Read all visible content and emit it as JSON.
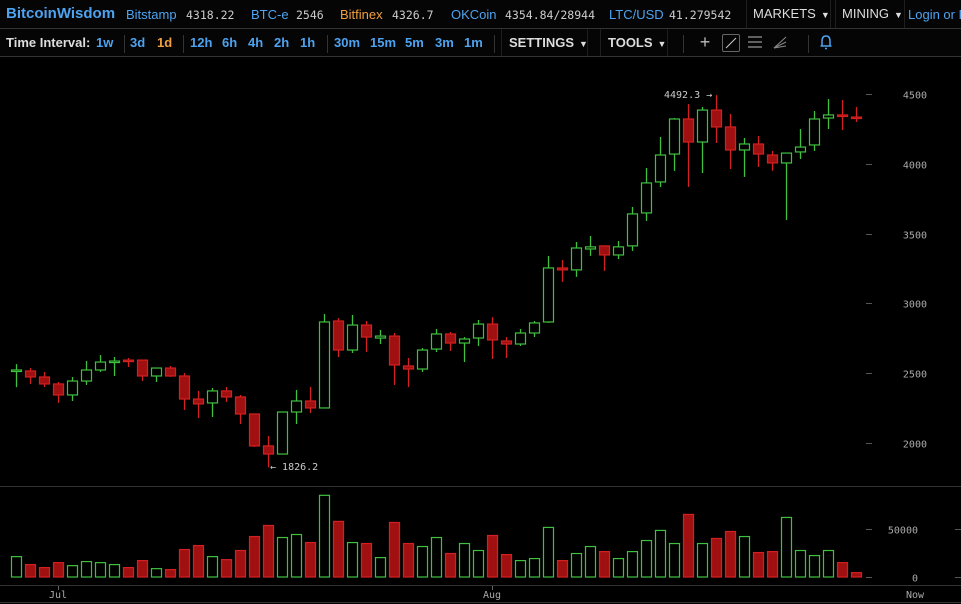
{
  "header": {
    "brand": "BitcoinWisdom",
    "markets": [
      {
        "name": "Bitstamp",
        "value": "4318.22",
        "active": false
      },
      {
        "name": "BTC-e",
        "value": "2546",
        "active": false
      },
      {
        "name": "Bitfinex",
        "value": "4326.7",
        "active": true
      },
      {
        "name": "OKCoin",
        "value": "4354.84/28944",
        "active": false
      },
      {
        "name": "LTC/USD",
        "value": "41.279542",
        "active": false
      }
    ],
    "markets_menu": "MARKETS",
    "mining_menu": "MINING",
    "login": "Login or R"
  },
  "toolbar": {
    "time_interval_label": "Time Interval:",
    "intervals": [
      "1w",
      "3d",
      "1d",
      "12h",
      "6h",
      "4h",
      "2h",
      "1h",
      "30m",
      "15m",
      "5m",
      "3m",
      "1m"
    ],
    "active_interval": "1d",
    "settings": "SETTINGS",
    "tools": "TOOLS",
    "icons": [
      "crosshair-icon",
      "line-tool-icon",
      "horizontal-lines-icon",
      "fan-tool-icon",
      "bell-icon"
    ]
  },
  "colors": {
    "up": "#3fc13f",
    "down": "#a01010",
    "down_stroke": "#d42020",
    "link": "#4ea3f0",
    "active": "#f0a040"
  },
  "chart_data": {
    "type": "candlestick",
    "price_ticks": [
      4500,
      4000,
      3500,
      3000,
      2500,
      2000
    ],
    "volume_ticks": [
      50000,
      0
    ],
    "x_labels": [
      "Jul",
      "Aug",
      "Now"
    ],
    "annotations": {
      "high": "4492.3",
      "low": "1826.2"
    },
    "candles": [
      [
        2523,
        2565,
        2400,
        2523
      ],
      [
        2516,
        2537,
        2423,
        2473
      ],
      [
        2473,
        2509,
        2401,
        2423
      ],
      [
        2423,
        2437,
        2287,
        2344
      ],
      [
        2344,
        2473,
        2301,
        2444
      ],
      [
        2444,
        2587,
        2416,
        2523
      ],
      [
        2523,
        2630,
        2509,
        2580
      ],
      [
        2580,
        2616,
        2480,
        2587
      ],
      [
        2594,
        2609,
        2544,
        2590
      ],
      [
        2594,
        2594,
        2444,
        2480
      ],
      [
        2480,
        2537,
        2437,
        2537
      ],
      [
        2537,
        2552,
        2473,
        2480
      ],
      [
        2480,
        2501,
        2237,
        2315
      ],
      [
        2315,
        2373,
        2179,
        2280
      ],
      [
        2287,
        2394,
        2186,
        2373
      ],
      [
        2373,
        2401,
        2294,
        2330
      ],
      [
        2330,
        2344,
        2136,
        2208
      ],
      [
        2208,
        2208,
        1972,
        1979
      ],
      [
        1979,
        2050,
        1826,
        1921
      ],
      [
        1921,
        2222,
        1921,
        2222
      ],
      [
        2222,
        2380,
        2136,
        2301
      ],
      [
        2301,
        2401,
        2215,
        2251
      ],
      [
        2251,
        2924,
        2251,
        2867
      ],
      [
        2874,
        2895,
        2616,
        2666
      ],
      [
        2666,
        2917,
        2645,
        2845
      ],
      [
        2845,
        2874,
        2652,
        2759
      ],
      [
        2752,
        2810,
        2709,
        2766
      ],
      [
        2766,
        2788,
        2416,
        2559
      ],
      [
        2552,
        2609,
        2401,
        2530
      ],
      [
        2530,
        2681,
        2509,
        2666
      ],
      [
        2673,
        2817,
        2652,
        2781
      ],
      [
        2781,
        2795,
        2659,
        2716
      ],
      [
        2716,
        2759,
        2580,
        2745
      ],
      [
        2752,
        2881,
        2695,
        2852
      ],
      [
        2852,
        2902,
        2602,
        2738
      ],
      [
        2731,
        2759,
        2609,
        2709
      ],
      [
        2709,
        2817,
        2695,
        2788
      ],
      [
        2788,
        2874,
        2759,
        2860
      ],
      [
        2867,
        3340,
        2860,
        3254
      ],
      [
        3254,
        3311,
        3154,
        3240
      ],
      [
        3240,
        3440,
        3190,
        3397
      ],
      [
        3390,
        3483,
        3340,
        3405
      ],
      [
        3412,
        3412,
        3233,
        3347
      ],
      [
        3347,
        3447,
        3318,
        3405
      ],
      [
        3412,
        3691,
        3376,
        3641
      ],
      [
        3648,
        3970,
        3591,
        3863
      ],
      [
        3870,
        4192,
        3834,
        4063
      ],
      [
        4070,
        4328,
        3949,
        4321
      ],
      [
        4321,
        4428,
        3834,
        4156
      ],
      [
        4156,
        4407,
        3934,
        4385
      ],
      [
        4385,
        4492,
        4149,
        4264
      ],
      [
        4264,
        4357,
        3963,
        4099
      ],
      [
        4099,
        4185,
        3906,
        4142
      ],
      [
        4142,
        4199,
        3977,
        4070
      ],
      [
        4063,
        4092,
        3949,
        4006
      ],
      [
        4006,
        4077,
        3598,
        4077
      ],
      [
        4085,
        4249,
        4034,
        4120
      ],
      [
        4135,
        4378,
        4092,
        4321
      ],
      [
        4328,
        4464,
        4249,
        4350
      ],
      [
        4350,
        4457,
        4242,
        4349
      ],
      [
        4335,
        4407,
        4300,
        4328
      ]
    ],
    "volumes": [
      21000,
      12800,
      9700,
      14800,
      11700,
      15900,
      14800,
      12800,
      9700,
      16900,
      8600,
      7600,
      28300,
      32400,
      21000,
      17900,
      27300,
      41700,
      53100,
      40700,
      43800,
      35500,
      84200,
      57300,
      35500,
      34500,
      20000,
      56200,
      34500,
      31400,
      40700,
      24200,
      34500,
      27300,
      42800,
      23100,
      16900,
      19000,
      51100,
      16900,
      24200,
      31400,
      26200,
      19000,
      26200,
      37600,
      48000,
      34500,
      64500,
      34500,
      39700,
      46900,
      41700,
      25200,
      26200,
      61400,
      27300,
      22100,
      27300,
      14800,
      4500
    ]
  }
}
